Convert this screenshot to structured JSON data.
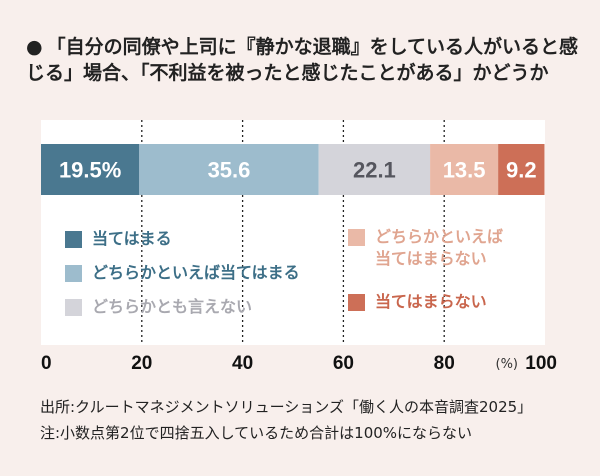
{
  "title": "「自分の同僚や上司に『静かな退職』をしている人がいると感じる」場合、「不利益を被ったと感じたことがある」かどうか",
  "title_bullet": "●",
  "chart_data": {
    "type": "bar",
    "stacked": true,
    "orientation": "horizontal",
    "title": "「自分の同僚や上司に『静かな退職』をしている人がいると感じる」場合、「不利益を被ったと感じたことがある」かどうか",
    "xlim": [
      0,
      100
    ],
    "xticks": [
      "0",
      "20",
      "40",
      "60",
      "80",
      "100"
    ],
    "xunit": "(%)",
    "series": [
      {
        "name": "当てはまる",
        "value": 19.5,
        "label": "19.5%",
        "color": "#4a7890",
        "text_color": "#ffffff",
        "legend_color": "#3d6f87"
      },
      {
        "name": "どちらかといえば当てはまる",
        "value": 35.6,
        "label": "35.6",
        "color": "#9dbccd",
        "text_color": "#ffffff",
        "legend_color": "#3d6f87"
      },
      {
        "name": "どちらかとも言えない",
        "value": 22.1,
        "label": "22.1",
        "color": "#d4d4da",
        "text_color": "#55565e",
        "legend_color": "#a9a9b0"
      },
      {
        "name": "どちらかといえば当てはまらない",
        "value": 13.5,
        "label": "13.5",
        "color": "#eab9a7",
        "text_color": "#ffffff",
        "legend_color": "#e0a590"
      },
      {
        "name": "当てはまらない",
        "value": 9.2,
        "label": "9.2",
        "color": "#cd6f57",
        "text_color": "#ffffff",
        "legend_color": "#c9664d"
      }
    ],
    "legend_lines": [
      [
        "当てはまる"
      ],
      [
        "どちらかといえば当てはまる"
      ],
      [
        "どちらかとも言えない"
      ],
      [
        "どちらかといえば",
        "当てはまらない"
      ],
      [
        "当てはまらない"
      ]
    ]
  },
  "source": "出所:クルートマネジメントソリューションズ「働く人の本音調査2025」",
  "note": "注:小数点第2位で四捨五入しているため合計は100%にならない"
}
